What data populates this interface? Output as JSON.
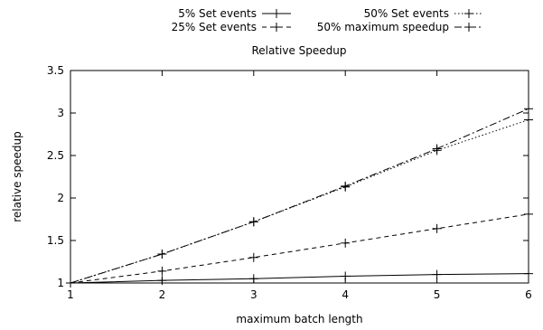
{
  "chart_data": {
    "type": "line",
    "title": "Relative Speedup",
    "xlabel": "maximum batch length",
    "ylabel": "relative speedup",
    "x": [
      1,
      2,
      3,
      4,
      5,
      6
    ],
    "xlim": [
      1,
      6
    ],
    "ylim": [
      1,
      3.5
    ],
    "xticks": [
      "1",
      "2",
      "3",
      "4",
      "5",
      "6"
    ],
    "yticks": [
      "1",
      "1.5",
      "2",
      "2.5",
      "3",
      "3.5"
    ],
    "grid": false,
    "legend_position": "top",
    "series": [
      {
        "name": "5% Set events",
        "values": [
          1.0,
          1.03,
          1.05,
          1.08,
          1.1,
          1.11
        ],
        "dash": "solid",
        "color": "#000000"
      },
      {
        "name": "25% Set events",
        "values": [
          1.0,
          1.14,
          1.3,
          1.47,
          1.64,
          1.81
        ],
        "dash": "dashed",
        "color": "#000000"
      },
      {
        "name": "50% Set events",
        "values": [
          1.0,
          1.34,
          1.72,
          2.13,
          2.56,
          2.92
        ],
        "dash": "dotted",
        "color": "#000000"
      },
      {
        "name": "50% maximum speedup",
        "values": [
          1.0,
          1.34,
          1.72,
          2.14,
          2.58,
          3.05
        ],
        "dash": "dashdot",
        "color": "#000000"
      }
    ]
  }
}
